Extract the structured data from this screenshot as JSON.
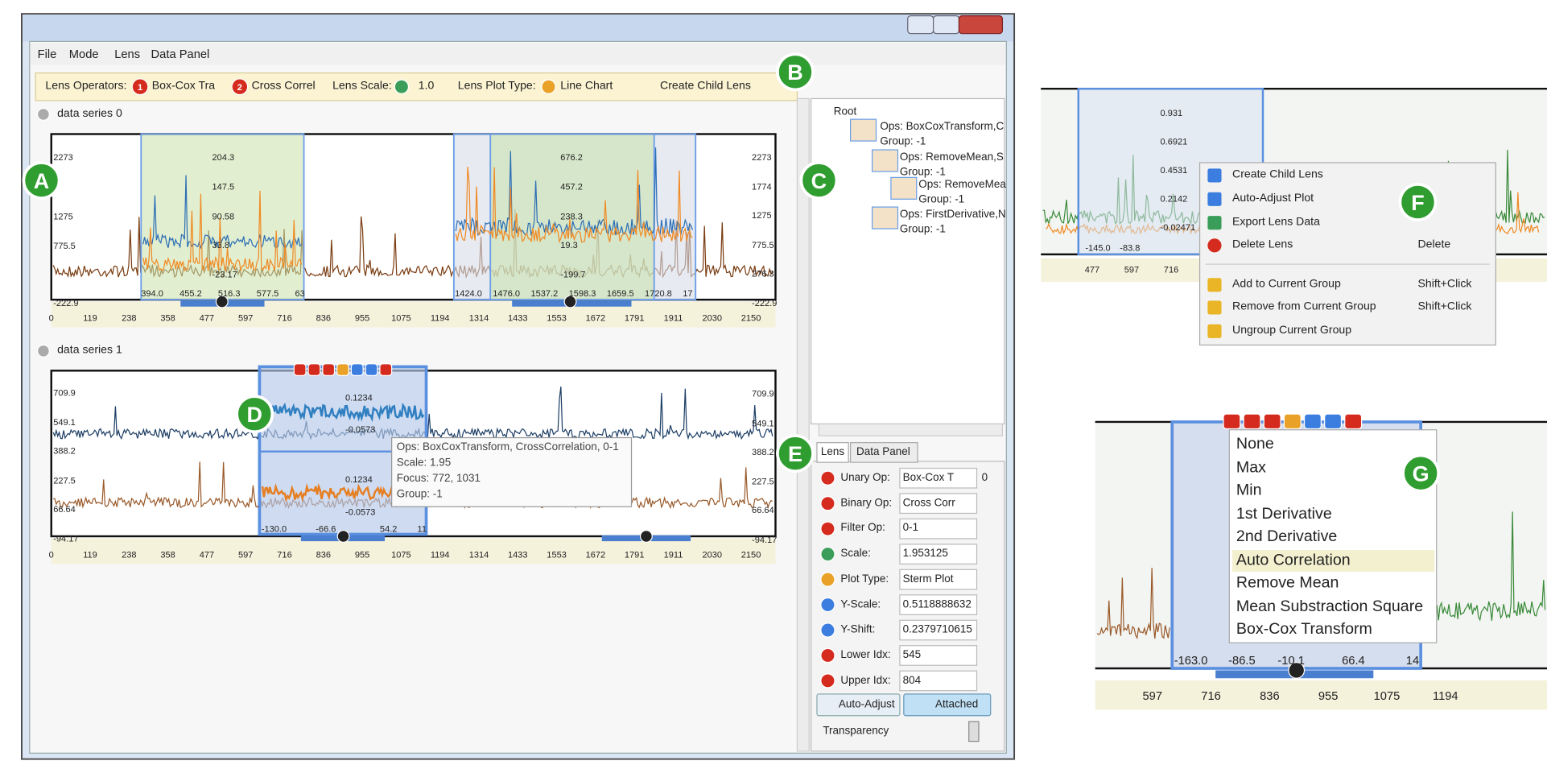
{
  "window": {
    "menu": [
      "File",
      "Mode",
      "Lens",
      "Data Panel"
    ]
  },
  "toolbar": {
    "lens_operators": "Lens Operators:",
    "unary_op": "Box-Cox Tra",
    "binary_op": "Cross Correl",
    "lens_scale": "Lens Scale:",
    "scale_value": "1.0",
    "lens_plot_type": "Lens Plot Type:",
    "plot_type": "Line Chart",
    "create_child_lens": "Create Child Lens"
  },
  "series0": {
    "title": "data series 0",
    "y_ticks_left": [
      "2273",
      "1275",
      "775.5",
      "-222.9"
    ],
    "y_ticks_right": [
      "2273",
      "1774",
      "1275",
      "775.5",
      "276.3",
      "-222.9"
    ],
    "x_ticks": [
      "0",
      "119",
      "238",
      "358",
      "477",
      "597",
      "716",
      "836",
      "955",
      "1075",
      "1194",
      "1314",
      "1433",
      "1553",
      "1672",
      "1791",
      "1911",
      "2030",
      "2150"
    ],
    "lens_1": {
      "y_labels": [
        "204.3",
        "147.5",
        "90.58",
        "33.8",
        "-23.17"
      ],
      "x_labels": [
        "394.0",
        "455.2",
        "516.3",
        "577.5",
        "63"
      ]
    },
    "lens_2": {
      "y_labels": [
        "676.2",
        "457.2",
        "238.3",
        "19.3",
        "-199.7"
      ],
      "x_labels": [
        "1424.0",
        "1476.0",
        "1537.2",
        "1598.3",
        "1659.5",
        "1720.8",
        "17"
      ]
    }
  },
  "series1": {
    "title": "data series 1",
    "y_ticks_left": [
      "709.9",
      "549.1",
      "388.2",
      "227.5",
      "66.64",
      "-94.17"
    ],
    "y_ticks_right": [
      "709.9",
      "549.1",
      "388.2",
      "227.5",
      "66.64",
      "-94.17"
    ],
    "x_ticks": [
      "0",
      "119",
      "238",
      "358",
      "477",
      "597",
      "716",
      "836",
      "955",
      "1075",
      "1194",
      "1314",
      "1433",
      "1553",
      "1672",
      "1791",
      "1911",
      "2030",
      "2150"
    ],
    "lens_d": {
      "labels": [
        "0.1234",
        "-0.0573",
        "0.1234",
        "-0.0573"
      ],
      "x_labels": [
        "-130.0",
        "-66.6",
        "54.2",
        "11"
      ]
    }
  },
  "tooltip": [
    "Ops: BoxCoxTransform, CrossCorrelation, 0-1",
    "Scale: 1.95",
    "Focus: 772, 1031",
    "Group: -1"
  ],
  "tree": {
    "root": "Root",
    "nodes": [
      {
        "ops": "Ops: BoxCoxTransform,C",
        "group": "Group: -1"
      },
      {
        "ops": "Ops: RemoveMean,S",
        "group": "Group: -1"
      },
      {
        "ops": "Ops: RemoveMea",
        "group": "Group: -1"
      },
      {
        "ops": "Ops: FirstDerivative,N",
        "group": "Group: -1"
      }
    ]
  },
  "properties": {
    "tabs": [
      "Lens",
      "Data Panel"
    ],
    "rows": [
      {
        "label": "Unary Op:",
        "value": "Box-Cox T",
        "extra": "0"
      },
      {
        "label": "Binary Op:",
        "value": "Cross Corr"
      },
      {
        "label": "Filter Op:",
        "value": "0-1"
      },
      {
        "label": "Scale:",
        "value": "1.953125"
      },
      {
        "label": "Plot Type:",
        "value": "Sterm Plot"
      },
      {
        "label": "Y-Scale:",
        "value": "0.5118888632"
      },
      {
        "label": "Y-Shift:",
        "value": "0.2379710615"
      },
      {
        "label": "Lower Idx:",
        "value": "545"
      },
      {
        "label": "Upper Idx:",
        "value": "804"
      }
    ],
    "auto_adjust": "Auto-Adjust",
    "attached": "Attached",
    "transparency": "Transparency"
  },
  "inset_f": {
    "y_labels": [
      "0.931",
      "0.6921",
      "0.4531",
      "0.2142",
      "-0.02471"
    ],
    "x_labels": [
      "-145.0",
      "-83.8"
    ],
    "axis": [
      "477",
      "597",
      "716"
    ],
    "menu": [
      {
        "label": "Create Child Lens"
      },
      {
        "label": "Auto-Adjust Plot"
      },
      {
        "label": "Export Lens Data"
      },
      {
        "label": "Delete Lens",
        "shortcut": "Delete"
      },
      {
        "label": "Add to Current Group",
        "shortcut": "Shift+Click"
      },
      {
        "label": "Remove from Current Group",
        "shortcut": "Shift+Click"
      },
      {
        "label": "Ungroup Current Group"
      }
    ]
  },
  "inset_g": {
    "menu": [
      "None",
      "Max",
      "Min",
      "1st Derivative",
      "2nd Derivative",
      "Auto Correlation",
      "Remove Mean",
      "Mean Substraction Square",
      "Box-Cox Transform"
    ],
    "x_labels": [
      "-163.0",
      "-86.5",
      "-10.1",
      "66.4",
      "14"
    ],
    "axis": [
      "597",
      "716",
      "836",
      "955",
      "1075",
      "1194"
    ]
  },
  "callouts": [
    "A",
    "B",
    "C",
    "D",
    "E",
    "F",
    "G"
  ]
}
